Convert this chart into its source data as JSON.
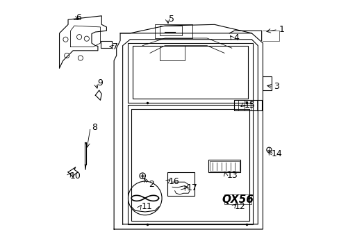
{
  "background_color": "#ffffff",
  "line_color": "#000000",
  "label_fontsize": 9,
  "figsize": [
    4.89,
    3.6
  ],
  "dpi": 100,
  "leaders": [
    {
      "num": "1",
      "xl": 0.94,
      "yl": 0.885,
      "xt": 0.88,
      "yt": 0.875
    },
    {
      "num": "2",
      "xl": 0.415,
      "yl": 0.262,
      "xt": 0.392,
      "yt": 0.295
    },
    {
      "num": "3",
      "xl": 0.92,
      "yl": 0.655,
      "xt": 0.882,
      "yt": 0.66
    },
    {
      "num": "4",
      "xl": 0.756,
      "yl": 0.85,
      "xt": 0.742,
      "yt": 0.862
    },
    {
      "num": "5",
      "xl": 0.495,
      "yl": 0.928,
      "xt": 0.495,
      "yt": 0.9
    },
    {
      "num": "6",
      "xl": 0.12,
      "yl": 0.932,
      "xt": 0.14,
      "yt": 0.92
    },
    {
      "num": "7",
      "xl": 0.27,
      "yl": 0.816,
      "xt": 0.248,
      "yt": 0.82
    },
    {
      "num": "8",
      "xl": 0.185,
      "yl": 0.49,
      "xt": 0.165,
      "yt": 0.4
    },
    {
      "num": "9",
      "xl": 0.207,
      "yl": 0.668,
      "xt": 0.21,
      "yt": 0.638
    },
    {
      "num": "10",
      "xl": 0.098,
      "yl": 0.295,
      "xt": 0.108,
      "yt": 0.315
    },
    {
      "num": "11",
      "xl": 0.385,
      "yl": 0.17,
      "xt": 0.39,
      "yt": 0.185
    },
    {
      "num": "12",
      "xl": 0.76,
      "yl": 0.17,
      "xt": 0.775,
      "yt": 0.188
    },
    {
      "num": "13",
      "xl": 0.73,
      "yl": 0.298,
      "xt": 0.72,
      "yt": 0.32
    },
    {
      "num": "14",
      "xl": 0.91,
      "yl": 0.385,
      "xt": 0.898,
      "yt": 0.398
    },
    {
      "num": "15",
      "xl": 0.8,
      "yl": 0.58,
      "xt": 0.778,
      "yt": 0.568
    },
    {
      "num": "16",
      "xl": 0.495,
      "yl": 0.272,
      "xt": 0.51,
      "yt": 0.285
    },
    {
      "num": "17",
      "xl": 0.568,
      "yl": 0.248,
      "xt": 0.555,
      "yt": 0.262
    }
  ]
}
